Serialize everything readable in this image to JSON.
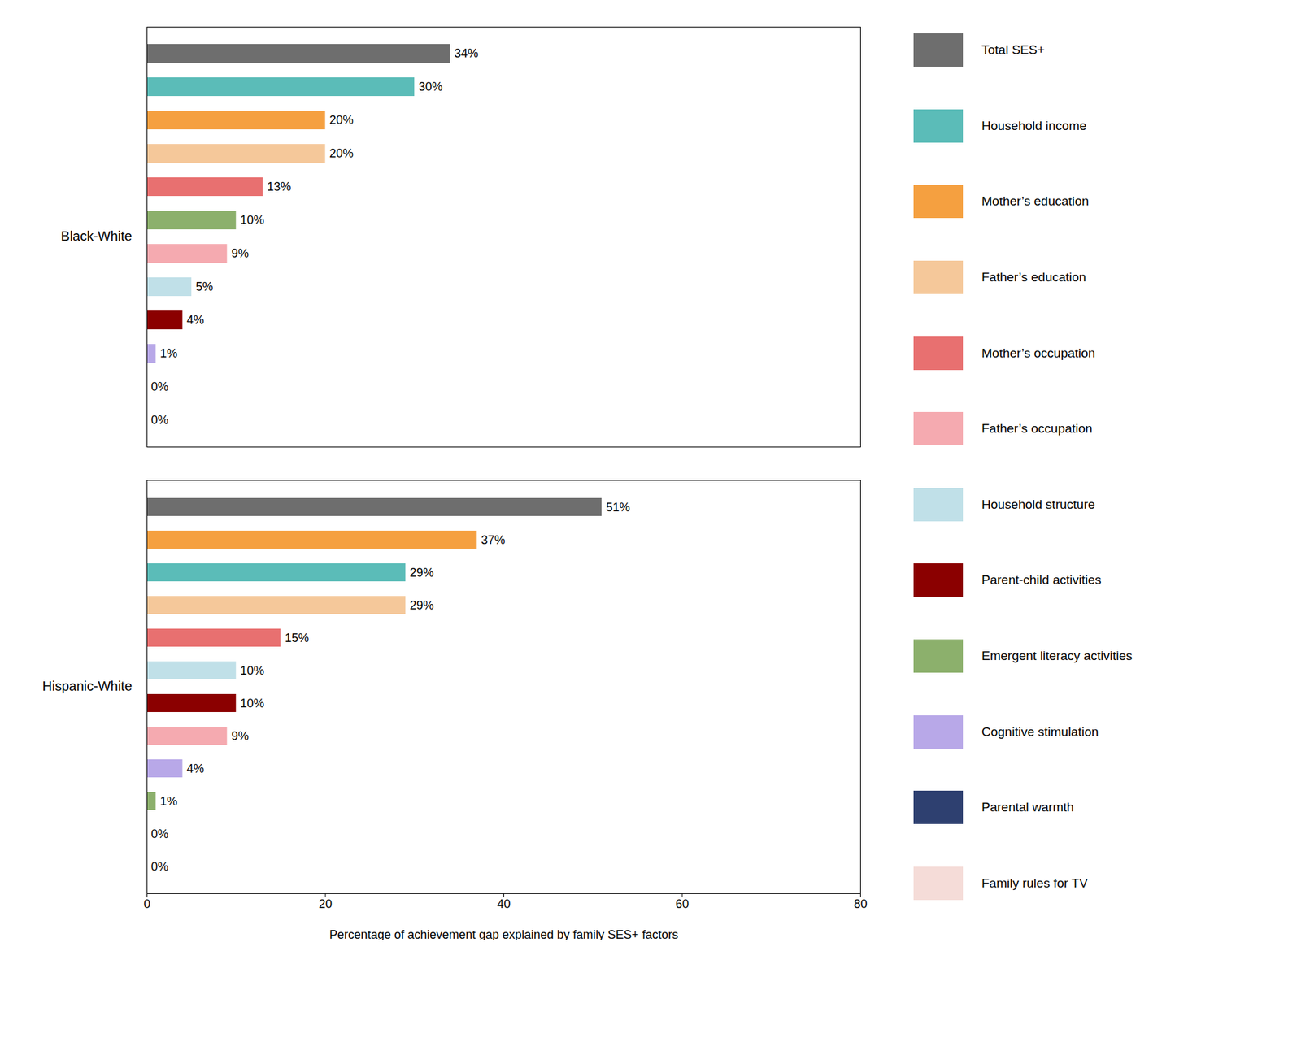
{
  "chart_data": [
    {
      "type": "bar",
      "orientation": "horizontal",
      "title": "Black-White",
      "categories": [
        "Total SES+",
        "Household income",
        "Mother’s education",
        "Father’s education",
        "Mother’s occupation",
        "Emergent literacy activities",
        "Father’s occupation",
        "Household structure",
        "Parent-child activities",
        "Cognitive stimulation",
        "Parental warmth",
        "Family rules for TV"
      ],
      "values": [
        34,
        30,
        20,
        20,
        13,
        10,
        9,
        5,
        4,
        1,
        0,
        0
      ],
      "value_labels": [
        "34%",
        "30%",
        "20%",
        "20%",
        "13%",
        "10%",
        "9%",
        "5%",
        "4%",
        "1%",
        "0%",
        "0%"
      ],
      "colors": [
        "#6e6e6e",
        "#5bbcb8",
        "#f5a040",
        "#f5c89a",
        "#e87070",
        "#8cb06c",
        "#f5aab0",
        "#c0e0e8",
        "#8b0000",
        "#b8a8e8",
        "#2e4070",
        "#f5dcd8"
      ],
      "xlim": [
        0,
        80
      ],
      "tick_labels": false,
      "data_labels": true,
      "legend": "right",
      "legend_items": [
        {
          "name": "Total SES+",
          "color": "#6e6e6e"
        },
        {
          "name": "Household income",
          "color": "#5bbcb8"
        },
        {
          "name": "Mother’s education",
          "color": "#f5a040"
        },
        {
          "name": "Father’s education",
          "color": "#f5c89a"
        },
        {
          "name": "Mother’s occupation",
          "color": "#e87070"
        },
        {
          "name": "Father’s occupation",
          "color": "#f5aab0"
        },
        {
          "name": "Household structure",
          "color": "#c0e0e8"
        },
        {
          "name": "Parent-child activities",
          "color": "#8b0000"
        },
        {
          "name": "Emergent literacy activities",
          "color": "#8cb06c"
        },
        {
          "name": "Cognitive stimulation",
          "color": "#b8a8e8"
        },
        {
          "name": "Parental warmth",
          "color": "#2e4070"
        },
        {
          "name": "Family rules for TV",
          "color": "#f5dcd8"
        }
      ]
    },
    {
      "type": "bar",
      "orientation": "horizontal",
      "title": "Hispanic-White",
      "categories": [
        "Total SES+",
        "Mother’s education",
        "Household income",
        "Father’s education",
        "Mother’s occupation",
        "Household structure",
        "Parent-child activities",
        "Father’s occupation",
        "Cognitive stimulation",
        "Emergent literacy activities",
        "Parental warmth",
        "Family rules for TV"
      ],
      "values": [
        51,
        37,
        29,
        29,
        15,
        10,
        10,
        9,
        4,
        1,
        0,
        0
      ],
      "value_labels": [
        "51%",
        "37%",
        "29%",
        "29%",
        "15%",
        "10%",
        "10%",
        "9%",
        "4%",
        "1%",
        "0%",
        "0%"
      ],
      "colors": [
        "#6e6e6e",
        "#f5a040",
        "#5bbcb8",
        "#f5c89a",
        "#e87070",
        "#c0e0e8",
        "#8b0000",
        "#f5aab0",
        "#b8a8e8",
        "#8cb06c",
        "#2e4070",
        "#f5dcd8"
      ],
      "xlabel": "Percentage of achievement gap explained by family SES+ factors",
      "xlim": [
        0,
        80
      ],
      "xticks": [
        0,
        20,
        40,
        60,
        80
      ],
      "tick_labels": "x",
      "data_labels": true
    }
  ]
}
